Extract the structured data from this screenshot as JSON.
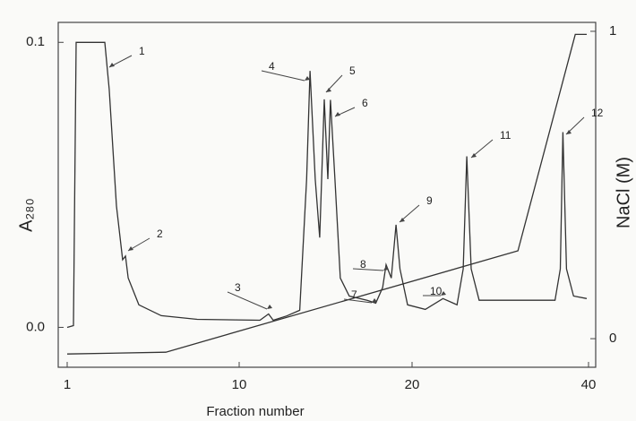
{
  "chart_data": {
    "type": "line",
    "xlabel": "Fraction number",
    "ylabel": "A₂₈₀",
    "y2label": "NaCl (M)",
    "xlim": [
      0.5,
      41
    ],
    "xticks": [
      1,
      10,
      20,
      40
    ],
    "ylim": [
      -0.014,
      0.107
    ],
    "yticks": [
      {
        "value": 0,
        "label": "0.0"
      },
      0.1
    ],
    "y2lim": [
      -0.093,
      1.029
    ],
    "y2ticks": [
      0,
      1
    ],
    "series": [
      {
        "color": "#333333",
        "x": [
          1,
          1.33,
          1.47,
          2.97,
          3.2,
          3.58,
          3.9,
          4.05,
          4.19,
          4.75,
          5.92,
          7.8,
          11.2,
          11.7,
          11.97,
          12.75,
          13.5,
          13.9,
          14.1,
          14.4,
          14.66,
          14.92,
          15.13,
          15.28,
          15.54,
          15.85,
          16.37,
          17.4,
          17.9,
          18.3,
          18.5,
          18.8,
          19.07,
          19.3,
          19.74,
          21.5,
          23.5,
          25.1,
          25.8,
          26.2,
          26.7,
          27.6,
          36.2,
          36.8,
          37.1,
          37.5,
          38.3,
          39.8
        ],
        "values": [
          0.0,
          0.0006,
          0.1,
          0.1,
          0.0836,
          0.0426,
          0.0237,
          0.025,
          0.0173,
          0.0079,
          0.0041,
          0.0028,
          0.0025,
          0.0047,
          0.0025,
          0.004,
          0.006,
          0.052,
          0.09,
          0.052,
          0.0315,
          0.08,
          0.052,
          0.0798,
          0.052,
          0.0173,
          0.011,
          0.0095,
          0.0085,
          0.014,
          0.022,
          0.0173,
          0.036,
          0.0205,
          0.0079,
          0.0063,
          0.0101,
          0.0079,
          0.0205,
          0.06,
          0.0205,
          0.0095,
          0.0095,
          0.0205,
          0.0685,
          0.0205,
          0.011,
          0.0101
        ]
      },
      {
        "color": "#333333",
        "axis": "y2",
        "x": [
          1,
          6.16,
          32,
          38.5,
          39.8
        ],
        "values": [
          -0.05,
          -0.044,
          0.286,
          0.99,
          0.99
        ]
      }
    ],
    "annotations": [
      "1",
      "2",
      "3",
      "4",
      "5",
      "6",
      "7",
      "8",
      "9",
      "10",
      "11",
      "12"
    ]
  }
}
